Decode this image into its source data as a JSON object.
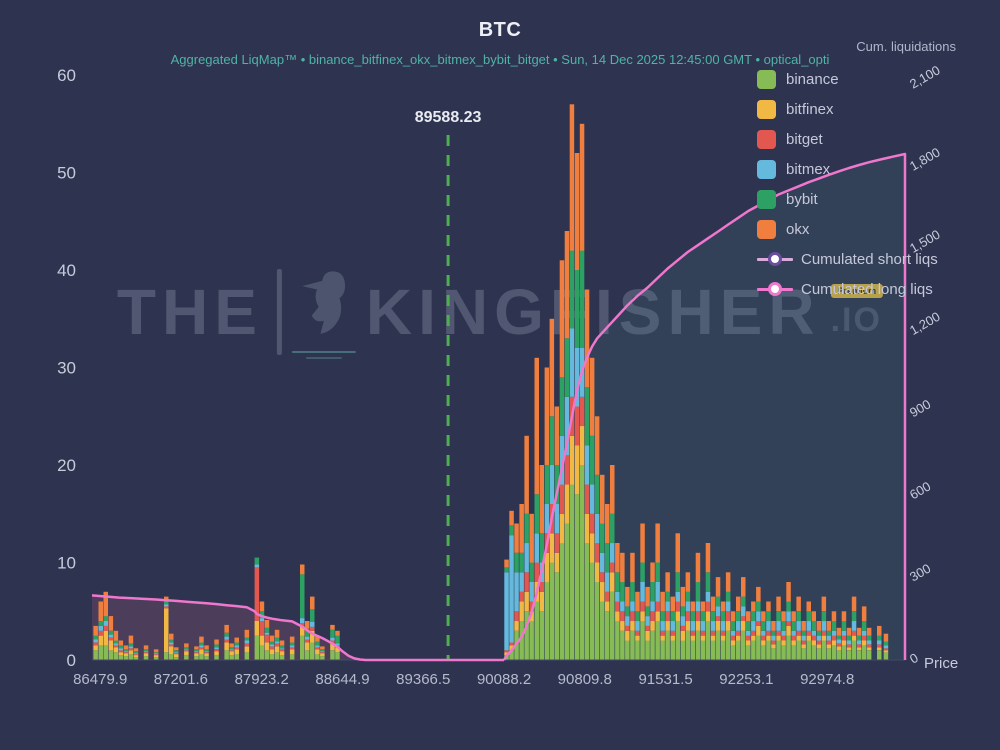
{
  "header": {
    "title": "BTC",
    "subtitle": "Aggregated LiqMap™  •  binance_bitfinex_okx_bitmex_bybit_bitget  •  Sun, 14 Dec 2025 12:45:00 GMT  •  optical_opti",
    "cum_label": "Cum. liquidations"
  },
  "watermark": {
    "part1": "THE",
    "part2": "KINGFISHER",
    "part3": ".IO",
    "badge": "Premium"
  },
  "legend": {
    "items": [
      {
        "label": "binance",
        "color": "#86bb56",
        "type": "swatch"
      },
      {
        "label": "bitfinex",
        "color": "#f2b844",
        "type": "swatch"
      },
      {
        "label": "bitget",
        "color": "#e2574f",
        "type": "swatch"
      },
      {
        "label": "bitmex",
        "color": "#64b9dd",
        "type": "swatch"
      },
      {
        "label": "bybit",
        "color": "#2da164",
        "type": "swatch"
      },
      {
        "label": "okx",
        "color": "#f07e3e",
        "type": "swatch"
      },
      {
        "label": "Cumulated short liqs",
        "line": "#d9aade",
        "ring": "#6b4d9e",
        "type": "line"
      },
      {
        "label": "Cumulated long liqs",
        "line": "#f077ce",
        "ring": "#f077ce",
        "type": "line"
      }
    ]
  },
  "chart_data": {
    "type": "bar",
    "title": "BTC",
    "x_title": "Price",
    "x_range": [
      86407,
      93670
    ],
    "y_left_range": [
      0,
      60
    ],
    "y_right_range": [
      0,
      2100
    ],
    "x_ticks": [
      86479.9,
      87201.6,
      87923.2,
      88644.9,
      89366.5,
      90088.2,
      90809.8,
      91531.5,
      92253.1,
      92974.8
    ],
    "x_tick_labels": [
      "86479.9",
      "87201.6",
      "87923.2",
      "88644.9",
      "89366.5",
      "90088.2",
      "90809.8",
      "91531.5",
      "92253.1",
      "92974.8"
    ],
    "left_ticks": [
      0,
      10,
      20,
      30,
      40,
      50,
      60
    ],
    "right_ticks": [
      0,
      300,
      600,
      900,
      1200,
      1500,
      1800,
      2100
    ],
    "right_tick_labels": [
      "0",
      "300",
      "600",
      "900",
      "1,200",
      "1,500",
      "1,800",
      "2,100"
    ],
    "vline": {
      "x": 89588.23,
      "label": "89588.23",
      "color": "#4cb04f"
    },
    "line_color": "#f077ce",
    "long_fill": "rgba(125,80,110,0.38)",
    "short_fill": "rgba(80,140,150,0.14)",
    "bar_width": 4.5,
    "stack_order": [
      "binance",
      "bitfinex",
      "bitget",
      "bitmex",
      "bybit",
      "okx"
    ],
    "exchange_colors": {
      "binance": "#86bb56",
      "bitfinex": "#f2b844",
      "bitget": "#e2574f",
      "bitmex": "#64b9dd",
      "bybit": "#2da164",
      "okx": "#f07e3e"
    },
    "bars": [
      [
        86440,
        1,
        0.5,
        0.3,
        0.3,
        0.4,
        1
      ],
      [
        86485,
        1.5,
        1,
        0.5,
        0.5,
        0.5,
        2
      ],
      [
        86530,
        1.5,
        1.5,
        0.5,
        0.5,
        0.5,
        2.5
      ],
      [
        86575,
        1,
        1,
        0.3,
        0.3,
        0.4,
        1.5
      ],
      [
        86620,
        0.8,
        0.5,
        0.2,
        0.2,
        0.3,
        1
      ],
      [
        86665,
        0.5,
        0.3,
        0.2,
        0.2,
        0.3,
        0.5
      ],
      [
        86710,
        0.4,
        0.3,
        0.1,
        0.1,
        0.2,
        0.4
      ],
      [
        86755,
        0.6,
        0.4,
        0.2,
        0.2,
        0.3,
        0.8
      ],
      [
        86800,
        0.3,
        0.2,
        0.1,
        0.1,
        0.2,
        0.3
      ],
      [
        86890,
        0.4,
        0.3,
        0.1,
        0.1,
        0.2,
        0.4
      ],
      [
        86980,
        0.3,
        0.2,
        0.1,
        0.1,
        0.1,
        0.3
      ],
      [
        87070,
        0.8,
        4.5,
        0.2,
        0.2,
        0.3,
        0.5
      ],
      [
        87115,
        0.6,
        0.8,
        0.2,
        0.2,
        0.3,
        0.6
      ],
      [
        87160,
        0.3,
        0.3,
        0.1,
        0.1,
        0.2,
        0.3
      ],
      [
        87250,
        0.5,
        0.4,
        0.1,
        0.1,
        0.2,
        0.4
      ],
      [
        87340,
        0.4,
        0.3,
        0.1,
        0.1,
        0.2,
        0.3
      ],
      [
        87385,
        0.6,
        0.5,
        0.2,
        0.2,
        0.3,
        0.6
      ],
      [
        87430,
        0.4,
        0.3,
        0.1,
        0.1,
        0.2,
        0.4
      ],
      [
        87520,
        0.5,
        0.4,
        0.2,
        0.2,
        0.3,
        0.5
      ],
      [
        87610,
        1,
        0.8,
        0.3,
        0.3,
        0.4,
        0.8
      ],
      [
        87655,
        0.5,
        0.4,
        0.1,
        0.1,
        0.2,
        0.4
      ],
      [
        87700,
        0.6,
        0.5,
        0.2,
        0.2,
        0.3,
        0.5
      ],
      [
        87790,
        0.8,
        0.6,
        0.3,
        0.3,
        0.3,
        0.8
      ],
      [
        87880,
        2.5,
        1.5,
        5.5,
        0.3,
        0.7,
        0
      ],
      [
        87925,
        1.5,
        1,
        1.5,
        0.3,
        0.7,
        1
      ],
      [
        87970,
        1,
        0.8,
        0.8,
        0.2,
        0.5,
        0.8
      ],
      [
        88015,
        0.6,
        0.5,
        0.3,
        0.2,
        0.3,
        0.6
      ],
      [
        88060,
        0.8,
        0.6,
        0.3,
        0.2,
        0.4,
        0.8
      ],
      [
        88105,
        0.5,
        0.4,
        0.2,
        0.1,
        0.3,
        0.5
      ],
      [
        88195,
        0.6,
        0.5,
        0.2,
        0.2,
        0.3,
        0.6
      ],
      [
        88285,
        2.5,
        1,
        0.3,
        0.5,
        4.5,
        1
      ],
      [
        88330,
        1,
        0.8,
        0.3,
        0.3,
        0.8,
        0.8
      ],
      [
        88375,
        1.8,
        1.2,
        0.4,
        0.5,
        1.3,
        1.3
      ],
      [
        88420,
        0.6,
        0.5,
        0.2,
        0.2,
        0.4,
        0.6
      ],
      [
        88465,
        0.4,
        0.3,
        0.1,
        0.1,
        0.2,
        0.3
      ],
      [
        88555,
        1,
        0.7,
        0.3,
        0.3,
        0.8,
        0.5
      ],
      [
        88600,
        0.8,
        0.5,
        0.2,
        0.2,
        0.8,
        0.5
      ],
      [
        90110,
        0.5,
        0.3,
        0.2,
        8,
        0.5,
        0.8
      ],
      [
        90155,
        1,
        0.5,
        0.3,
        11,
        1,
        1.5
      ],
      [
        90200,
        3,
        1,
        1,
        4,
        2,
        3
      ],
      [
        90245,
        4,
        2,
        1,
        2,
        2,
        5
      ],
      [
        90290,
        5,
        2,
        2,
        3,
        3,
        8
      ],
      [
        90335,
        4,
        1,
        1,
        2,
        2,
        5
      ],
      [
        90380,
        6,
        2,
        2,
        3,
        4,
        14
      ],
      [
        90425,
        5,
        2,
        1,
        2,
        3,
        7
      ],
      [
        90470,
        8,
        3,
        2,
        3,
        4,
        10
      ],
      [
        90515,
        10,
        3,
        3,
        4,
        5,
        10
      ],
      [
        90560,
        9,
        2,
        2,
        3,
        4,
        6
      ],
      [
        90605,
        12,
        3,
        3,
        5,
        6,
        12
      ],
      [
        90650,
        14,
        4,
        3,
        6,
        6,
        11
      ],
      [
        90695,
        18,
        5,
        4,
        7,
        8,
        15
      ],
      [
        90740,
        17,
        5,
        4,
        6,
        8,
        12
      ],
      [
        90785,
        20,
        4,
        3,
        5,
        10,
        13
      ],
      [
        90830,
        12,
        3,
        3,
        4,
        6,
        10
      ],
      [
        90875,
        10,
        3,
        2,
        3,
        5,
        8
      ],
      [
        90920,
        8,
        2,
        2,
        3,
        4,
        6
      ],
      [
        90965,
        6,
        2,
        1,
        2,
        3,
        5
      ],
      [
        91010,
        5,
        1,
        1,
        2,
        3,
        4
      ],
      [
        91055,
        7,
        2,
        1,
        2,
        3,
        5
      ],
      [
        91100,
        4,
        1,
        1,
        1,
        2,
        3
      ],
      [
        91145,
        3,
        1,
        1,
        1,
        2,
        3
      ],
      [
        91190,
        2,
        1,
        0.5,
        1,
        1,
        2
      ],
      [
        91235,
        3,
        1,
        1,
        1,
        2,
        3
      ],
      [
        91280,
        2,
        0.5,
        0.5,
        1,
        1,
        2
      ],
      [
        91325,
        4,
        1,
        1,
        2,
        2,
        4
      ],
      [
        91370,
        2,
        1,
        0.5,
        1,
        1,
        2
      ],
      [
        91415,
        3,
        1,
        1,
        1,
        2,
        2
      ],
      [
        91460,
        4,
        1,
        1,
        2,
        2,
        4
      ],
      [
        91505,
        2,
        0.5,
        0.5,
        1,
        1,
        2
      ],
      [
        91550,
        3,
        1,
        1,
        1,
        1,
        2
      ],
      [
        91595,
        2,
        0.5,
        0.5,
        1,
        1,
        1.5
      ],
      [
        91640,
        4,
        1,
        1,
        1,
        2,
        4
      ],
      [
        91685,
        2,
        1,
        0.5,
        1,
        1,
        2
      ],
      [
        91730,
        3,
        1,
        1,
        1,
        1,
        2
      ],
      [
        91775,
        2,
        0.5,
        0.5,
        1,
        1,
        1
      ],
      [
        91820,
        3,
        1,
        1,
        1,
        2,
        3
      ],
      [
        91865,
        2,
        0.5,
        0.5,
        1,
        1,
        1
      ],
      [
        91910,
        4,
        1,
        1,
        1,
        2,
        3
      ],
      [
        91955,
        2,
        0.5,
        0.5,
        1,
        1,
        1.5
      ],
      [
        92000,
        3,
        1,
        0.5,
        1,
        1,
        2
      ],
      [
        92045,
        2,
        0.5,
        0.5,
        1,
        1,
        1
      ],
      [
        92090,
        3,
        1,
        1,
        1,
        1,
        2
      ],
      [
        92135,
        1.5,
        0.5,
        0.5,
        0.5,
        1,
        1
      ],
      [
        92180,
        2,
        0.5,
        0.5,
        1,
        1,
        1.5
      ],
      [
        92225,
        3,
        1,
        0.5,
        1,
        1,
        2
      ],
      [
        92270,
        1.5,
        0.5,
        0.5,
        0.5,
        1,
        1
      ],
      [
        92315,
        2,
        0.5,
        0.5,
        1,
        1,
        1
      ],
      [
        92360,
        2.5,
        1,
        0.5,
        1,
        1,
        1.5
      ],
      [
        92405,
        1.5,
        0.5,
        0.5,
        0.5,
        1,
        1
      ],
      [
        92450,
        2,
        0.5,
        0.5,
        1,
        1,
        1
      ],
      [
        92495,
        1.2,
        0.4,
        0.4,
        0.5,
        0.5,
        1
      ],
      [
        92540,
        2,
        0.5,
        0.5,
        1,
        1,
        1.5
      ],
      [
        92585,
        1.5,
        0.5,
        0.5,
        0.5,
        1,
        1
      ],
      [
        92630,
        2.5,
        1,
        0.5,
        1,
        1,
        2
      ],
      [
        92675,
        1.5,
        0.5,
        0.5,
        0.5,
        1,
        1
      ],
      [
        92720,
        2,
        0.5,
        0.5,
        1,
        1,
        1.5
      ],
      [
        92765,
        1.2,
        0.4,
        0.4,
        0.5,
        0.5,
        1
      ],
      [
        92810,
        2,
        0.5,
        0.5,
        1,
        1,
        1
      ],
      [
        92855,
        1.5,
        0.5,
        0.5,
        0.5,
        1,
        1
      ],
      [
        92900,
        1.2,
        0.4,
        0.4,
        0.5,
        0.5,
        1
      ],
      [
        92945,
        2,
        0.5,
        0.5,
        1,
        1,
        1.5
      ],
      [
        92990,
        1.2,
        0.4,
        0.4,
        0.5,
        0.5,
        1
      ],
      [
        93035,
        1.5,
        0.5,
        0.5,
        0.5,
        1,
        1
      ],
      [
        93080,
        1,
        0.4,
        0.3,
        0.4,
        0.4,
        0.8
      ],
      [
        93125,
        1.5,
        0.5,
        0.5,
        0.5,
        1,
        1
      ],
      [
        93170,
        1,
        0.3,
        0.3,
        0.4,
        0.5,
        0.8
      ],
      [
        93215,
        2,
        0.5,
        0.5,
        1,
        1,
        1.5
      ],
      [
        93260,
        1,
        0.3,
        0.3,
        0.4,
        0.5,
        0.8
      ],
      [
        93305,
        1.5,
        0.5,
        0.5,
        0.5,
        1,
        1.5
      ],
      [
        93350,
        1,
        0.3,
        0.3,
        0.4,
        0.5,
        0.8
      ],
      [
        93440,
        1,
        0.3,
        0.3,
        0.4,
        0.5,
        1
      ],
      [
        93500,
        0.8,
        0.2,
        0.2,
        0.3,
        0.4,
        0.8
      ]
    ],
    "cum_long": [
      [
        86407,
        236
      ],
      [
        86500,
        233
      ],
      [
        86560,
        231
      ],
      [
        86650,
        228
      ],
      [
        86750,
        226
      ],
      [
        86850,
        224
      ],
      [
        86980,
        221
      ],
      [
        87070,
        218
      ],
      [
        87160,
        216
      ],
      [
        87250,
        213
      ],
      [
        87340,
        210
      ],
      [
        87430,
        207
      ],
      [
        87520,
        204
      ],
      [
        87610,
        200
      ],
      [
        87700,
        197
      ],
      [
        87790,
        193
      ],
      [
        87860,
        178
      ],
      [
        87880,
        168
      ],
      [
        87925,
        160
      ],
      [
        87970,
        155
      ],
      [
        88015,
        151
      ],
      [
        88060,
        148
      ],
      [
        88105,
        145
      ],
      [
        88195,
        141
      ],
      [
        88285,
        122
      ],
      [
        88330,
        108
      ],
      [
        88375,
        96
      ],
      [
        88420,
        88
      ],
      [
        88465,
        80
      ],
      [
        88510,
        70
      ],
      [
        88555,
        60
      ],
      [
        88600,
        48
      ],
      [
        88650,
        30
      ],
      [
        88700,
        15
      ],
      [
        88750,
        6
      ],
      [
        88800,
        2
      ],
      [
        88850,
        0
      ],
      [
        90088,
        0
      ]
    ],
    "cum_short": [
      [
        90088,
        0
      ],
      [
        90110,
        15
      ],
      [
        90155,
        35
      ],
      [
        90200,
        60
      ],
      [
        90245,
        85
      ],
      [
        90290,
        125
      ],
      [
        90335,
        175
      ],
      [
        90380,
        245
      ],
      [
        90425,
        330
      ],
      [
        90470,
        420
      ],
      [
        90515,
        520
      ],
      [
        90560,
        610
      ],
      [
        90605,
        700
      ],
      [
        90650,
        790
      ],
      [
        90695,
        890
      ],
      [
        90740,
        985
      ],
      [
        90785,
        1055
      ],
      [
        90830,
        1105
      ],
      [
        90875,
        1145
      ],
      [
        90920,
        1175
      ],
      [
        90965,
        1195
      ],
      [
        91010,
        1215
      ],
      [
        91055,
        1235
      ],
      [
        91100,
        1255
      ],
      [
        91190,
        1295
      ],
      [
        91280,
        1330
      ],
      [
        91370,
        1360
      ],
      [
        91460,
        1395
      ],
      [
        91550,
        1430
      ],
      [
        91640,
        1460
      ],
      [
        91730,
        1490
      ],
      [
        91820,
        1515
      ],
      [
        91910,
        1540
      ],
      [
        92000,
        1565
      ],
      [
        92090,
        1590
      ],
      [
        92180,
        1615
      ],
      [
        92270,
        1640
      ],
      [
        92360,
        1660
      ],
      [
        92450,
        1680
      ],
      [
        92540,
        1700
      ],
      [
        92630,
        1715
      ],
      [
        92720,
        1730
      ],
      [
        92810,
        1745
      ],
      [
        92900,
        1758
      ],
      [
        92990,
        1772
      ],
      [
        93080,
        1785
      ],
      [
        93170,
        1797
      ],
      [
        93260,
        1808
      ],
      [
        93350,
        1818
      ],
      [
        93450,
        1828
      ],
      [
        93560,
        1838
      ],
      [
        93670,
        1848
      ]
    ]
  }
}
